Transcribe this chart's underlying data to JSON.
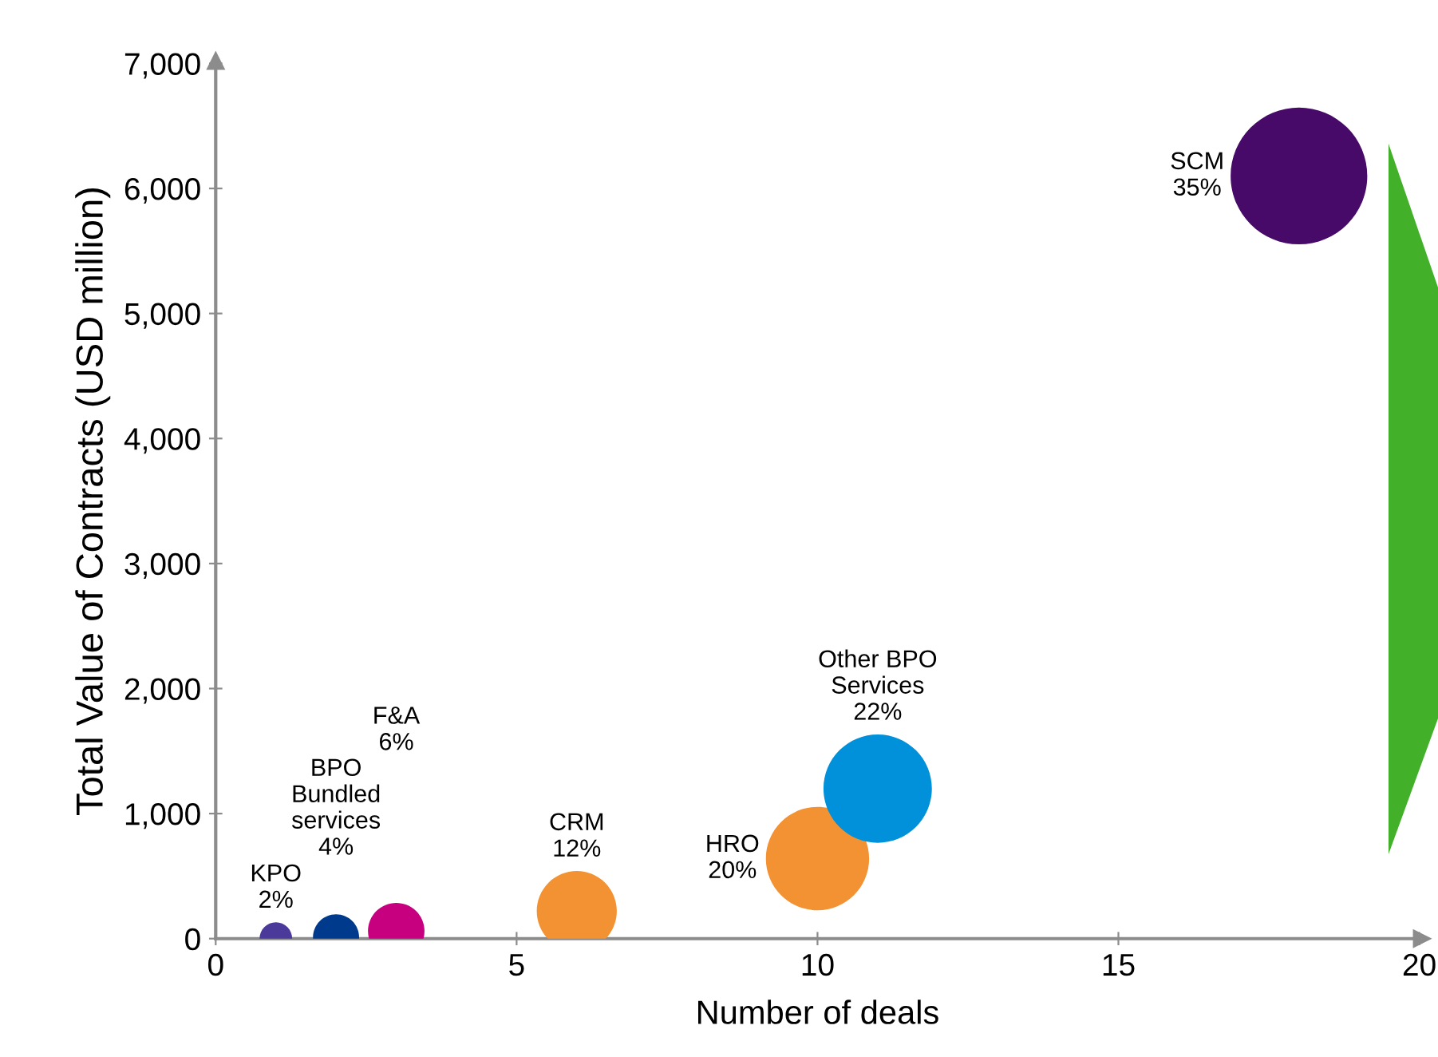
{
  "chart_data": {
    "type": "bubble",
    "xlabel": "Number of deals",
    "ylabel": "Total Value of Contracts (USD million)",
    "xlim": [
      0,
      20
    ],
    "xticks": [
      0,
      5,
      10,
      15,
      20
    ],
    "ylim": [
      0,
      7000
    ],
    "yticks": [
      {
        "value": 0,
        "label": "0"
      },
      {
        "value": 1000,
        "label": "1,000"
      },
      {
        "value": 2000,
        "label": "2,000"
      },
      {
        "value": 3000,
        "label": "3,000"
      },
      {
        "value": 4000,
        "label": "4,000"
      },
      {
        "value": 5000,
        "label": "5,000"
      },
      {
        "value": 6000,
        "label": "6,000"
      },
      {
        "value": 7000,
        "label": "7,000"
      }
    ],
    "grid": false,
    "legend": false,
    "x": [
      1,
      2,
      3,
      6,
      10,
      11,
      18
    ],
    "values": [
      0,
      10,
      60,
      220,
      640,
      1200,
      6100
    ],
    "sizes": [
      0.057,
      0.114,
      0.171,
      0.343,
      0.571,
      0.629,
      1
    ],
    "colors": [
      "#4b3a9a",
      "#003a8c",
      "#c6007e",
      "#f39233",
      "#f39233",
      "#0091da",
      "#470a68"
    ],
    "annotations": [
      "KPO\n2%",
      "BPO\nBundled\nservices\n4%",
      "F&A\n6%",
      "CRM\n12%",
      "HRO\n20%",
      "Other BPO\nServices\n22%",
      "SCM\n35%"
    ]
  }
}
